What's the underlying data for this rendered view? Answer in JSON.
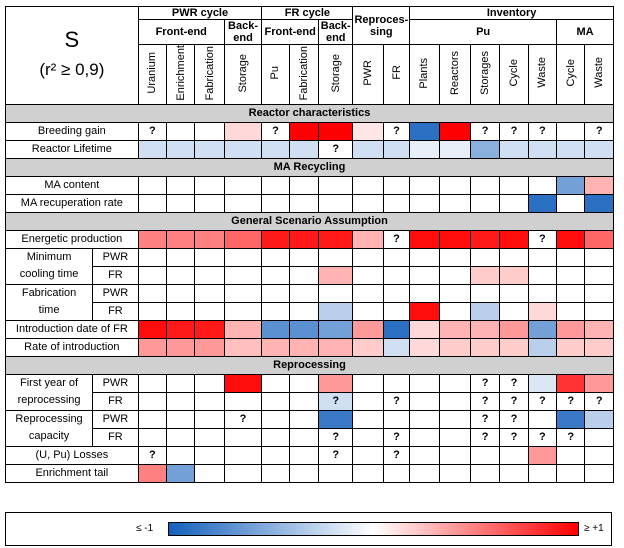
{
  "title": "S",
  "subtitle": "(r² ≥ 0,9)",
  "groups": {
    "pwr_cycle": "PWR cycle",
    "fr_cycle": "FR cycle",
    "reprocessing": "Reproces-sing",
    "inventory": "Inventory"
  },
  "subgroups": {
    "front_end": "Front-end",
    "back_end": "Back-end",
    "fr_front_end": "Front-end",
    "fr_back_end": "Back-end",
    "pu": "Pu",
    "ma": "MA"
  },
  "columns": [
    "Uranium",
    "Enrichment",
    "Fabrication",
    "Storage",
    "Pu",
    "Fabrication",
    "Storage",
    "PWR",
    "FR",
    "Plants",
    "Reactors",
    "Storages",
    "Cycle",
    "Waste",
    "Cycle",
    "Waste"
  ],
  "sections": {
    "reactor": "Reactor characteristics",
    "ma": "MA Recycling",
    "general": "General Scenario Assumption",
    "reproc": "Reprocessing"
  },
  "labels": {
    "breeding_gain": "Breeding gain",
    "reactor_lifetime": "Reactor Lifetime",
    "ma_content": "MA content",
    "ma_recup": "MA recuperation rate",
    "energetic": "Energetic production",
    "min_cool_1": "Minimum",
    "min_cool_2": "cooling time",
    "fab_1": "Fabrication",
    "fab_2": "time",
    "intro_date": "Introduction date of FR",
    "rate_intro": "Rate of introduction",
    "first_year_1": "First year of",
    "first_year_2": "reprocessing",
    "reproc_cap_1": "Reprocessing",
    "reproc_cap_2": "capacity",
    "losses": "(U, Pu) Losses",
    "enrich_tail": "Enrichment tail",
    "pwr": "PWR",
    "fr": "FR"
  },
  "scale": {
    "min_label": "≤ -1",
    "max_label": "≥ +1",
    "min": -1,
    "max": 1
  },
  "grid_values": {
    "breeding_gain": {
      "v": [
        0,
        0,
        0,
        0.15,
        0,
        1,
        1,
        0.1,
        0,
        -0.9,
        1,
        0,
        0,
        0,
        0,
        0
      ],
      "q": [
        1,
        0,
        0,
        0,
        1,
        0,
        0,
        0,
        1,
        0,
        0,
        1,
        1,
        1,
        0,
        1
      ]
    },
    "reactor_lifetime": {
      "v": [
        -0.2,
        -0.2,
        -0.2,
        -0.2,
        -0.2,
        -0.2,
        0,
        -0.2,
        -0.2,
        -0.1,
        -0.1,
        -0.5,
        -0.2,
        -0.2,
        -0.2,
        -0.2
      ],
      "q": [
        0,
        0,
        0,
        0,
        0,
        0,
        1,
        0,
        0,
        0,
        0,
        0,
        0,
        0,
        0,
        0
      ]
    },
    "ma_content": {
      "v": [
        0,
        0,
        0,
        0,
        0,
        0,
        0,
        0,
        0,
        0,
        0,
        0,
        0,
        0,
        -0.6,
        0.3
      ],
      "q": [
        0,
        0,
        0,
        0,
        0,
        0,
        0,
        0,
        0,
        0,
        0,
        0,
        0,
        0,
        0,
        0
      ]
    },
    "ma_recup": {
      "v": [
        0,
        0,
        0,
        0,
        0,
        0,
        0,
        0,
        0,
        0,
        0,
        0,
        0,
        -0.9,
        0,
        -0.9
      ],
      "q": [
        0,
        0,
        0,
        0,
        0,
        0,
        0,
        0,
        0,
        0,
        0,
        0,
        0,
        0,
        0,
        0
      ]
    },
    "energetic": {
      "v": [
        0.5,
        0.5,
        0.5,
        0.6,
        0.9,
        0.9,
        0.9,
        0.3,
        0,
        0.95,
        0.95,
        0.9,
        0.95,
        0,
        0.95,
        0.6
      ],
      "q": [
        0,
        0,
        0,
        0,
        0,
        0,
        0,
        0,
        1,
        0,
        0,
        0,
        0,
        1,
        0,
        0
      ]
    },
    "min_cool_pwr": {
      "v": [
        0,
        0,
        0,
        0,
        0,
        0,
        0,
        0,
        0,
        0,
        0,
        0,
        0,
        0,
        0,
        0
      ],
      "q": [
        0,
        0,
        0,
        0,
        0,
        0,
        0,
        0,
        0,
        0,
        0,
        0,
        0,
        0,
        0,
        0
      ]
    },
    "min_cool_fr": {
      "v": [
        0,
        0,
        0,
        0,
        0,
        0,
        0.3,
        0,
        0,
        0,
        0,
        0.2,
        0.2,
        0,
        0,
        0
      ],
      "q": [
        0,
        0,
        0,
        0,
        0,
        0,
        0,
        0,
        0,
        0,
        0,
        0,
        0,
        0,
        0,
        0
      ]
    },
    "fab_pwr": {
      "v": [
        0,
        0,
        0,
        0,
        0,
        0,
        0,
        0,
        0,
        0,
        0,
        0,
        0,
        0,
        0,
        0
      ],
      "q": [
        0,
        0,
        0,
        0,
        0,
        0,
        0,
        0,
        0,
        0,
        0,
        0,
        0,
        0,
        0,
        0
      ]
    },
    "fab_fr": {
      "v": [
        0,
        0,
        0,
        0,
        0,
        0,
        -0.3,
        0,
        0,
        0.95,
        0,
        -0.3,
        0,
        0.15,
        0,
        0
      ],
      "q": [
        0,
        0,
        0,
        0,
        0,
        0,
        0,
        0,
        0,
        0,
        0,
        0,
        0,
        0,
        0,
        0
      ]
    },
    "intro_date": {
      "v": [
        0.95,
        0.9,
        0.9,
        0.3,
        -0.7,
        -0.7,
        -0.6,
        0.4,
        -0.9,
        0.15,
        0.3,
        0.3,
        0.4,
        -0.6,
        0.4,
        0.3
      ],
      "q": [
        0,
        0,
        0,
        0,
        0,
        0,
        0,
        0,
        0,
        0,
        0,
        0,
        0,
        0,
        0,
        0
      ]
    },
    "rate_intro": {
      "v": [
        0.4,
        0.4,
        0.4,
        0.25,
        0.3,
        0.3,
        0.3,
        0.2,
        -0.2,
        0.15,
        0.2,
        0.2,
        0.2,
        -0.3,
        0.2,
        0.2
      ],
      "q": [
        0,
        0,
        0,
        0,
        0,
        0,
        0,
        0,
        0,
        0,
        0,
        0,
        0,
        0,
        0,
        0
      ]
    },
    "first_year_pwr": {
      "v": [
        0,
        0,
        0,
        0.95,
        0,
        0,
        0.4,
        0,
        0,
        0,
        0,
        0,
        0,
        -0.15,
        0.8,
        0.4
      ],
      "q": [
        0,
        0,
        0,
        0,
        0,
        0,
        0,
        0,
        0,
        0,
        0,
        1,
        1,
        0,
        0,
        0
      ]
    },
    "first_year_fr": {
      "v": [
        0,
        0,
        0,
        0,
        0,
        0,
        -0.2,
        0,
        0,
        0,
        0,
        0,
        0,
        0,
        0,
        0
      ],
      "q": [
        0,
        0,
        0,
        0,
        0,
        0,
        1,
        0,
        1,
        0,
        0,
        1,
        1,
        1,
        1,
        1
      ]
    },
    "reproc_cap_pwr": {
      "v": [
        0,
        0,
        0,
        0,
        0,
        0,
        -0.85,
        0,
        0,
        0,
        0,
        0,
        0,
        0,
        -0.85,
        -0.3
      ],
      "q": [
        0,
        0,
        0,
        1,
        0,
        0,
        0,
        0,
        0,
        0,
        0,
        1,
        1,
        0,
        0,
        0
      ]
    },
    "reproc_cap_fr": {
      "v": [
        0,
        0,
        0,
        0,
        0,
        0,
        0,
        0,
        0,
        0,
        0,
        0,
        0,
        0,
        0,
        0
      ],
      "q": [
        0,
        0,
        0,
        0,
        0,
        0,
        1,
        0,
        1,
        0,
        0,
        1,
        1,
        1,
        1,
        0
      ]
    },
    "losses": {
      "v": [
        0,
        0,
        0,
        0,
        0,
        0,
        0,
        0,
        0,
        0,
        0,
        0,
        0,
        0.4,
        0,
        0
      ],
      "q": [
        1,
        0,
        0,
        0,
        0,
        0,
        1,
        0,
        1,
        0,
        0,
        0,
        0,
        0,
        0,
        0
      ]
    },
    "enrich_tail": {
      "v": [
        0.5,
        -0.6,
        0,
        0,
        0,
        0,
        0,
        0,
        0,
        0,
        0,
        0,
        0,
        0,
        0,
        0
      ],
      "q": [
        0,
        0,
        0,
        0,
        0,
        0,
        0,
        0,
        0,
        0,
        0,
        0,
        0,
        0,
        0,
        0
      ]
    }
  }
}
